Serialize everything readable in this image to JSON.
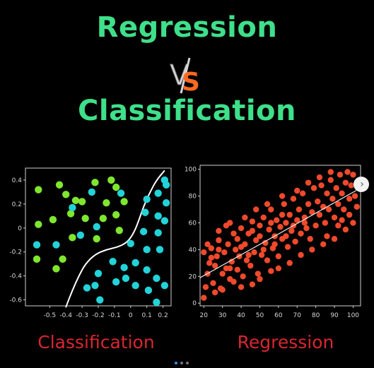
{
  "header": {
    "title_top": "Regression",
    "vs_v": "V",
    "vs_s": "S",
    "title_bottom": "Classification"
  },
  "captions": {
    "left": "Classification",
    "right": "Regression"
  },
  "colors": {
    "title_green": "#3ee08a",
    "vs_orange": "#ff6a1f",
    "caption_red": "#d9262f",
    "class_green": "#7fe62e",
    "class_cyan": "#22d3d8",
    "reg_red": "#f0492b"
  },
  "icons": {
    "next": "chevron-right-icon"
  },
  "carousel": {
    "total": 3,
    "active_index": 0
  },
  "chart_data": [
    {
      "type": "scatter",
      "title": "",
      "xlabel": "",
      "ylabel": "",
      "xlim": [
        -0.65,
        0.25
      ],
      "ylim": [
        -0.65,
        0.5
      ],
      "x_ticks": [
        "-0.5",
        "-0.4",
        "-0.3",
        "-0.2",
        "-0.1",
        "0",
        "0.1",
        "0.2"
      ],
      "y_ticks": [
        "0.4",
        "0.2",
        "0",
        "-0.2",
        "-0.4",
        "-0.6"
      ],
      "decision_boundary": [
        [
          -0.4,
          -0.66
        ],
        [
          -0.36,
          -0.52
        ],
        [
          -0.32,
          -0.4
        ],
        [
          -0.28,
          -0.3
        ],
        [
          -0.22,
          -0.22
        ],
        [
          -0.15,
          -0.18
        ],
        [
          -0.08,
          -0.16
        ],
        [
          -0.02,
          -0.12
        ],
        [
          0.02,
          -0.04
        ],
        [
          0.05,
          0.06
        ],
        [
          0.08,
          0.18
        ],
        [
          0.12,
          0.3
        ],
        [
          0.16,
          0.4
        ],
        [
          0.21,
          0.48
        ]
      ],
      "series": [
        {
          "points": [
            [
              -0.57,
              0.32
            ],
            [
              -0.44,
              0.36
            ],
            [
              -0.34,
              0.23
            ],
            [
              -0.22,
              0.38
            ],
            [
              -0.12,
              0.4
            ],
            [
              -0.57,
              0.03
            ],
            [
              -0.48,
              0.07
            ],
            [
              -0.37,
              0.12
            ],
            [
              -0.28,
              0.08
            ],
            [
              -0.17,
              0.08
            ],
            [
              -0.21,
              -0.09
            ],
            [
              -0.36,
              -0.08
            ],
            [
              -0.09,
              0.34
            ],
            [
              -0.04,
              0.22
            ],
            [
              -0.15,
              0.21
            ],
            [
              -0.09,
              0.11
            ],
            [
              -0.3,
              0.22
            ],
            [
              -0.58,
              -0.26
            ],
            [
              -0.42,
              -0.26
            ],
            [
              -0.46,
              -0.34
            ],
            [
              -0.07,
              -0.02
            ],
            [
              -0.4,
              0.28
            ]
          ]
        },
        {
          "points": [
            [
              -0.24,
              0.3
            ],
            [
              -0.06,
              0.29
            ],
            [
              -0.36,
              0.17
            ],
            [
              -0.21,
              0.01
            ],
            [
              -0.31,
              -0.06
            ],
            [
              -0.46,
              -0.14
            ],
            [
              -0.58,
              -0.14
            ],
            [
              0.1,
              0.24
            ],
            [
              0.17,
              0.29
            ],
            [
              0.22,
              0.36
            ],
            [
              0.22,
              0.21
            ],
            [
              0.09,
              0.13
            ],
            [
              0.17,
              0.1
            ],
            [
              0.17,
              -0.04
            ],
            [
              0.08,
              -0.03
            ],
            [
              0.21,
              0.06
            ],
            [
              0.0,
              -0.13
            ],
            [
              0.1,
              -0.18
            ],
            [
              0.18,
              -0.18
            ],
            [
              -0.11,
              -0.28
            ],
            [
              0.03,
              -0.29
            ],
            [
              0.1,
              -0.35
            ],
            [
              0.16,
              -0.42
            ],
            [
              -0.03,
              -0.42
            ],
            [
              -0.2,
              -0.38
            ],
            [
              -0.09,
              -0.45
            ],
            [
              -0.22,
              -0.48
            ],
            [
              0.03,
              -0.48
            ],
            [
              0.11,
              -0.52
            ],
            [
              0.21,
              -0.48
            ],
            [
              0.16,
              -0.62
            ],
            [
              -0.27,
              -0.5
            ],
            [
              -0.19,
              -0.6
            ],
            [
              -0.04,
              -0.33
            ],
            [
              0.21,
              0.4
            ]
          ]
        }
      ]
    },
    {
      "type": "scatter",
      "title": "",
      "xlabel": "",
      "ylabel": "",
      "xlim": [
        18,
        104
      ],
      "ylim": [
        -2,
        103
      ],
      "x_ticks": [
        "20",
        "30",
        "40",
        "50",
        "60",
        "70",
        "80",
        "90",
        "100"
      ],
      "y_ticks": [
        "100",
        "80",
        "60",
        "40",
        "20",
        "0"
      ],
      "trend_line": [
        [
          18,
          19
        ],
        [
          104,
          86
        ]
      ],
      "series": [
        {
          "points": [
            [
              20,
              4
            ],
            [
              21,
              12
            ],
            [
              22,
              22
            ],
            [
              23,
              30
            ],
            [
              24,
              41
            ],
            [
              25,
              15
            ],
            [
              26,
              28
            ],
            [
              27,
              35
            ],
            [
              28,
              47
            ],
            [
              29,
              11
            ],
            [
              30,
              22
            ],
            [
              31,
              38
            ],
            [
              32,
              26
            ],
            [
              33,
              44
            ],
            [
              34,
              18
            ],
            [
              35,
              31
            ],
            [
              36,
              52
            ],
            [
              37,
              40
            ],
            [
              38,
              25
            ],
            [
              39,
              35
            ],
            [
              40,
              56
            ],
            [
              41,
              20
            ],
            [
              42,
              44
            ],
            [
              43,
              32
            ],
            [
              44,
              52
            ],
            [
              45,
              28
            ],
            [
              46,
              61
            ],
            [
              47,
              38
            ],
            [
              48,
              47
            ],
            [
              49,
              22
            ],
            [
              50,
              58
            ],
            [
              51,
              36
            ],
            [
              52,
              64
            ],
            [
              53,
              45
            ],
            [
              54,
              32
            ],
            [
              55,
              55
            ],
            [
              56,
              70
            ],
            [
              57,
              41
            ],
            [
              58,
              50
            ],
            [
              59,
              62
            ],
            [
              60,
              35
            ],
            [
              61,
              57
            ],
            [
              62,
              48
            ],
            [
              63,
              74
            ],
            [
              64,
              60
            ],
            [
              65,
              42
            ],
            [
              66,
              66
            ],
            [
              67,
              54
            ],
            [
              68,
              78
            ],
            [
              69,
              46
            ],
            [
              70,
              62
            ],
            [
              71,
              70
            ],
            [
              72,
              52
            ],
            [
              73,
              82
            ],
            [
              74,
              64
            ],
            [
              75,
              56
            ],
            [
              76,
              74
            ],
            [
              77,
              48
            ],
            [
              78,
              68
            ],
            [
              79,
              86
            ],
            [
              80,
              58
            ],
            [
              81,
              76
            ],
            [
              82,
              66
            ],
            [
              83,
              88
            ],
            [
              84,
              72
            ],
            [
              85,
              60
            ],
            [
              86,
              82
            ],
            [
              87,
              70
            ],
            [
              88,
              92
            ],
            [
              89,
              78
            ],
            [
              90,
              64
            ],
            [
              91,
              86
            ],
            [
              92,
              74
            ],
            [
              93,
              96
            ],
            [
              94,
              82
            ],
            [
              95,
              70
            ],
            [
              96,
              90
            ],
            [
              97,
              98
            ],
            [
              98,
              78
            ],
            [
              99,
              88
            ],
            [
              100,
              96
            ],
            [
              101,
              80
            ],
            [
              102,
              72
            ],
            [
              100,
              60
            ],
            [
              96,
              55
            ],
            [
              90,
              48
            ],
            [
              84,
              44
            ],
            [
              78,
              40
            ],
            [
              72,
              36
            ],
            [
              66,
              30
            ],
            [
              60,
              26
            ],
            [
              56,
              24
            ],
            [
              50,
              18
            ],
            [
              46,
              14
            ],
            [
              40,
              12
            ],
            [
              36,
              16
            ],
            [
              30,
              10
            ],
            [
              26,
              8
            ],
            [
              24,
              34
            ],
            [
              28,
              54
            ],
            [
              34,
              60
            ],
            [
              42,
              64
            ],
            [
              48,
              70
            ],
            [
              54,
              74
            ],
            [
              62,
              80
            ],
            [
              70,
              84
            ],
            [
              76,
              90
            ],
            [
              82,
              94
            ],
            [
              88,
              98
            ],
            [
              94,
              62
            ],
            [
              98,
              66
            ],
            [
              58,
              44
            ],
            [
              64,
              50
            ],
            [
              52,
              40
            ],
            [
              44,
              36
            ],
            [
              38,
              48
            ],
            [
              32,
              58
            ],
            [
              22,
              44
            ],
            [
              20,
              38
            ],
            [
              86,
              50
            ],
            [
              92,
              58
            ],
            [
              74,
              60
            ],
            [
              68,
              58
            ],
            [
              62,
              66
            ],
            [
              56,
              60
            ],
            [
              50,
              50
            ],
            [
              46,
              54
            ],
            [
              40,
              42
            ],
            [
              34,
              26
            ],
            [
              28,
              40
            ]
          ]
        }
      ]
    }
  ]
}
